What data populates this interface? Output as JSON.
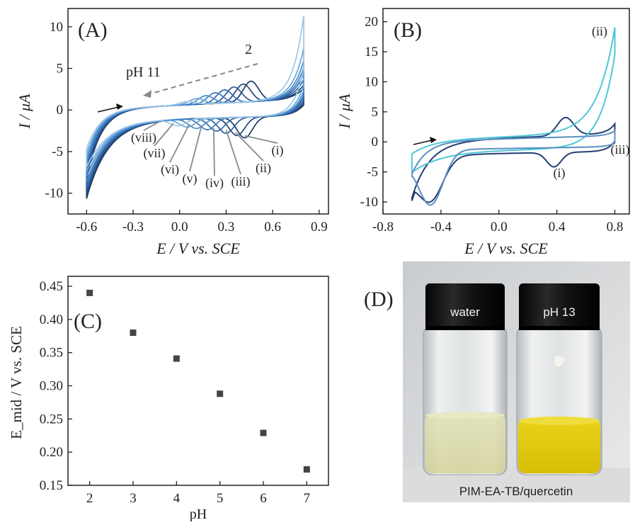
{
  "chart_data": [
    {
      "panel": "(A)",
      "type": "line",
      "xlabel": "E / V vs. SCE",
      "ylabel": "I / μA",
      "xlim": [
        -0.72,
        0.96
      ],
      "ylim": [
        -12.5,
        12.2
      ],
      "xticks": [
        -0.6,
        -0.3,
        0.0,
        0.3,
        0.6,
        0.9
      ],
      "yticks": [
        -10,
        -5,
        0,
        5,
        10
      ],
      "annotations": [
        "pH 11",
        "2"
      ],
      "curve_labels": [
        "(i)",
        "(ii)",
        "(iii)",
        "(iv)",
        "(v)",
        "(vi)",
        "(vii)",
        "(viii)"
      ],
      "series": [
        {
          "label": "(i)",
          "color": "#1b3a66",
          "peak_x": 0.46,
          "peak_y": 3.5,
          "rpeak_x": 0.42,
          "rpeak_y": -3.1,
          "end_y": 2.6,
          "start_y": -9.4,
          "start_y2": -8.6
        },
        {
          "label": "(ii)",
          "color": "#23487d",
          "peak_x": 0.41,
          "peak_y": 3.2,
          "rpeak_x": 0.37,
          "rpeak_y": -2.8,
          "end_y": 3.0,
          "start_y": -8.9,
          "start_y2": -8.1
        },
        {
          "label": "(iii)",
          "color": "#2c5a96",
          "peak_x": 0.35,
          "peak_y": 2.9,
          "rpeak_x": 0.3,
          "rpeak_y": -2.5,
          "end_y": 3.6,
          "start_y": -8.4,
          "start_y2": -7.6
        },
        {
          "label": "(iv)",
          "color": "#336aab",
          "peak_x": 0.29,
          "peak_y": 2.6,
          "rpeak_x": 0.24,
          "rpeak_y": -2.2,
          "end_y": 4.3,
          "start_y": -7.9,
          "start_y2": -7.1
        },
        {
          "label": "(v)",
          "color": "#3b7bbf",
          "peak_x": 0.23,
          "peak_y": 2.3,
          "rpeak_x": 0.18,
          "rpeak_y": -2.0,
          "end_y": 5.0,
          "start_y": -7.4,
          "start_y2": -6.6
        },
        {
          "label": "(vi)",
          "color": "#4a8ccc",
          "peak_x": 0.17,
          "peak_y": 2.0,
          "rpeak_x": 0.11,
          "rpeak_y": -1.8,
          "end_y": 5.9,
          "start_y": -6.8,
          "start_y2": -6.0
        },
        {
          "label": "(vii)",
          "color": "#6aa6da",
          "peak_x": 0.11,
          "peak_y": 1.7,
          "rpeak_x": 0.05,
          "rpeak_y": -1.6,
          "end_y": 7.4,
          "start_y": -6.2,
          "start_y2": -5.4
        },
        {
          "label": "(viii)",
          "color": "#9dc8e8",
          "peak_x": 0.05,
          "peak_y": 1.4,
          "rpeak_x": -0.01,
          "rpeak_y": -1.4,
          "end_y": 11.3,
          "start_y": -5.6,
          "start_y2": -4.8
        }
      ]
    },
    {
      "panel": "(B)",
      "type": "line",
      "xlabel": "E / V vs. SCE",
      "ylabel": "I / μA",
      "xlim": [
        -0.8,
        0.9
      ],
      "ylim": [
        -12.0,
        22.2
      ],
      "xticks": [
        -0.8,
        -0.4,
        0.0,
        0.4,
        0.8
      ],
      "yticks": [
        -10,
        -5,
        0,
        5,
        10,
        15,
        20
      ],
      "curve_labels": [
        "(i)",
        "(ii)",
        "(iii)"
      ],
      "series": [
        {
          "label": "(i)",
          "color": "#243f73",
          "end_y": 3.5,
          "start_y": -9.3,
          "min_y": -9.5,
          "peak_x": 0.46,
          "peak_y": 4.0,
          "rpeak_x": 0.38,
          "rpeak_y": -3.1
        },
        {
          "label": "(ii)",
          "color": "#4fc6d8",
          "end_y": 19.6,
          "start_y": -2.3,
          "min_y": -6.2
        },
        {
          "label": "(iii)",
          "color": "#5b8fc2",
          "end_y": 2.2,
          "start_y": -5.4,
          "min_y": -10.2
        }
      ]
    },
    {
      "panel": "(C)",
      "type": "scatter",
      "xlabel": "pH",
      "ylabel": "E_mid / V vs. SCE",
      "xlim": [
        1.5,
        7.5
      ],
      "ylim": [
        0.15,
        0.465
      ],
      "xticks": [
        2,
        3,
        4,
        5,
        6,
        7
      ],
      "yticks": [
        0.15,
        0.2,
        0.25,
        0.3,
        0.35,
        0.4,
        0.45
      ],
      "points": [
        {
          "x": 2,
          "y": 0.44
        },
        {
          "x": 3,
          "y": 0.38
        },
        {
          "x": 4,
          "y": 0.341
        },
        {
          "x": 5,
          "y": 0.288
        },
        {
          "x": 6,
          "y": 0.229
        },
        {
          "x": 7,
          "y": 0.174
        }
      ]
    }
  ],
  "photo": {
    "panel": "(D)",
    "vial_left_label": "water",
    "vial_right_label": "pH 13",
    "caption": "PIM-EA-TB/quercetin"
  }
}
